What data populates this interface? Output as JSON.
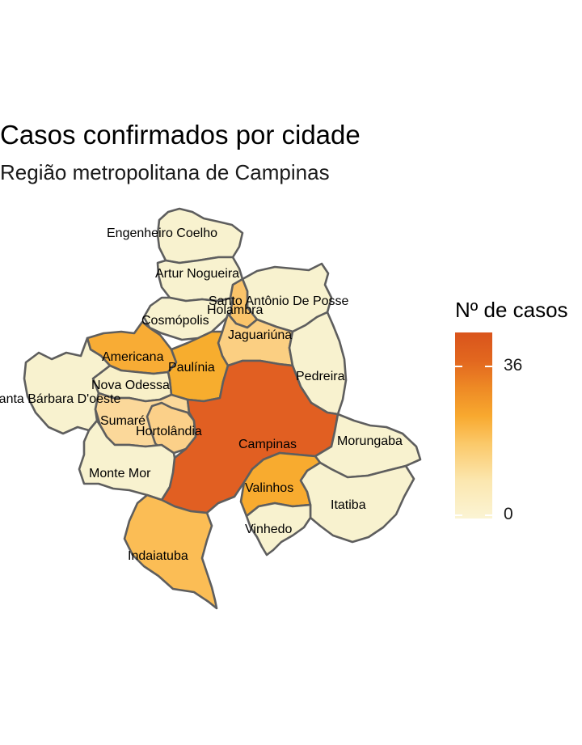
{
  "title": "Casos confirmados por cidade",
  "subtitle": "Região metropolitana de Campinas",
  "legend": {
    "title": "Nº de casos",
    "min": 0,
    "max": 40,
    "ticks": [
      {
        "value": 36,
        "label": "36"
      },
      {
        "value": 0,
        "label": "0"
      }
    ],
    "color_low": "#fbf4d4",
    "color_high": "#d9541c"
  },
  "cities": [
    {
      "name": "Engenheiro Coelho",
      "color": "#f8f2cf"
    },
    {
      "name": "Artur Nogueira",
      "color": "#f8f2cf"
    },
    {
      "name": "Santo Antônio De Posse",
      "color": "#f8f2cf"
    },
    {
      "name": "Holambra",
      "color": "#fbc46a"
    },
    {
      "name": "Cosmópolis",
      "color": "#f8f2cf"
    },
    {
      "name": "Jaguariúna",
      "color": "#fbcf82"
    },
    {
      "name": "Americana",
      "color": "#f8ac35"
    },
    {
      "name": "Paulínia",
      "color": "#f7ad2e"
    },
    {
      "name": "Pedreira",
      "color": "#f8f2cf"
    },
    {
      "name": "Nova Odessa",
      "color": "#f8f0c8"
    },
    {
      "name": "Santa Bárbara D'oeste",
      "color": "#f8f2cf"
    },
    {
      "name": "Sumaré",
      "color": "#fbd89a"
    },
    {
      "name": "Hortolândia",
      "color": "#fbd089"
    },
    {
      "name": "Campinas",
      "color": "#e15f22"
    },
    {
      "name": "Morungaba",
      "color": "#f8f2cf"
    },
    {
      "name": "Monte Mor",
      "color": "#f8f2cf"
    },
    {
      "name": "Valinhos",
      "color": "#f8ab2f"
    },
    {
      "name": "Itatiba",
      "color": "#f8f2cf"
    },
    {
      "name": "Vinhedo",
      "color": "#f8f2cf"
    },
    {
      "name": "Indaiatuba",
      "color": "#fbbd55"
    }
  ]
}
